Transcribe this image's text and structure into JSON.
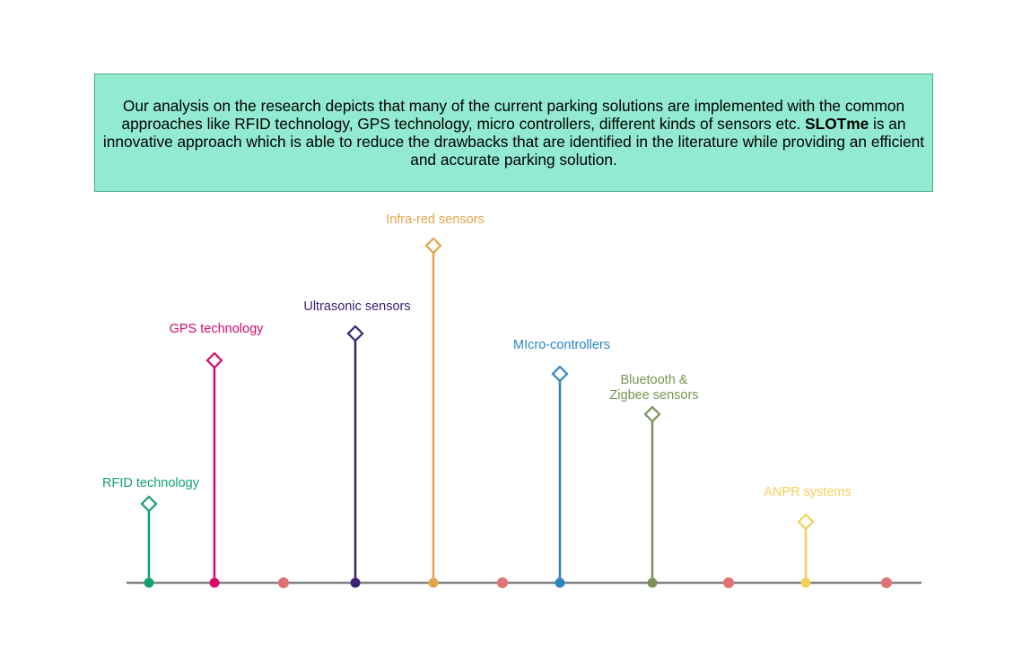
{
  "summary": {
    "text_before": "Our analysis on the research depicts that many of the current parking solutions are implemented with the common approaches like RFID technology, GPS technology, micro controllers, different kinds of sensors etc. ",
    "highlight": "SLOTme",
    "text_after": " is an innovative approach which is able to reduce the drawbacks that are identified in the literature while providing an efficient and accurate parking solution."
  },
  "timeline": {
    "axis_color": "#808080",
    "milestones": [
      {
        "id": "rfid",
        "label_lines": [
          "RFID technology"
        ],
        "color": "#14a06f"
      },
      {
        "id": "gps",
        "label_lines": [
          "GPS technology"
        ],
        "color": "#d9086a"
      },
      {
        "id": "ultrasonic",
        "label_lines": [
          "Ultrasonic sensors"
        ],
        "color": "#3a2174"
      },
      {
        "id": "infrared",
        "label_lines": [
          "Infra-red sensors"
        ],
        "color": "#e4a34a"
      },
      {
        "id": "microcontrollers",
        "label_lines": [
          "MIcro-controllers"
        ],
        "color": "#2b84c4"
      },
      {
        "id": "bluetooth-zigbee",
        "label_lines": [
          "Bluetooth &",
          "Zigbee sensors"
        ],
        "color": "#7a9253"
      },
      {
        "id": "anpr",
        "label_lines": [
          "ANPR systems"
        ],
        "color": "#f1d15a"
      }
    ],
    "spacer_dot_color": "#e07272"
  }
}
